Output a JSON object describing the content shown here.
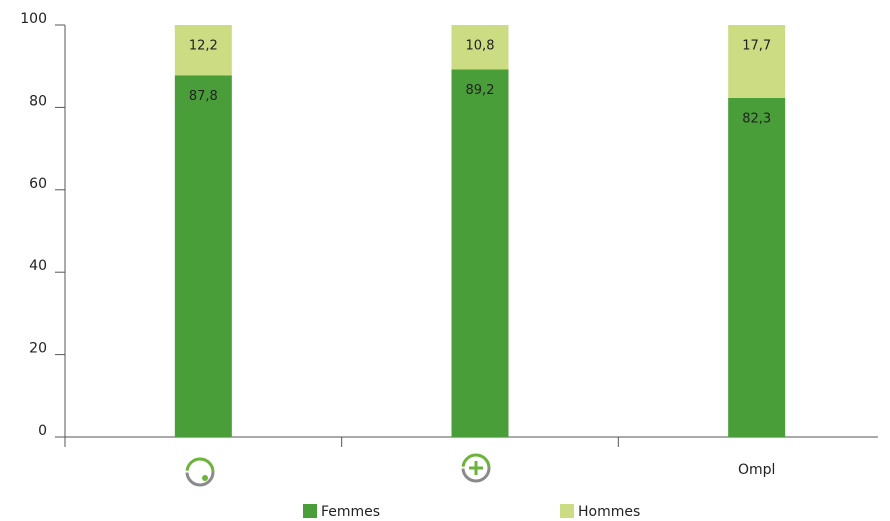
{
  "chart_data": {
    "type": "stacked_bar",
    "categories": [
      null,
      null,
      "Ompl"
    ],
    "series": [
      {
        "name": "Femmes",
        "color": "#4a9e3a",
        "values": [
          87.8,
          89.2,
          82.3
        ],
        "value_labels": [
          "87,8",
          "89,2",
          "82,3"
        ]
      },
      {
        "name": "Hommes",
        "color": "#cbdc82",
        "values": [
          12.2,
          10.8,
          17.7
        ],
        "value_labels": [
          "12,2",
          "10,8",
          "17,7"
        ]
      }
    ],
    "ylim": [
      0,
      100
    ],
    "yticks": [
      0,
      20,
      40,
      60,
      80,
      100
    ],
    "legend": "bottom"
  }
}
